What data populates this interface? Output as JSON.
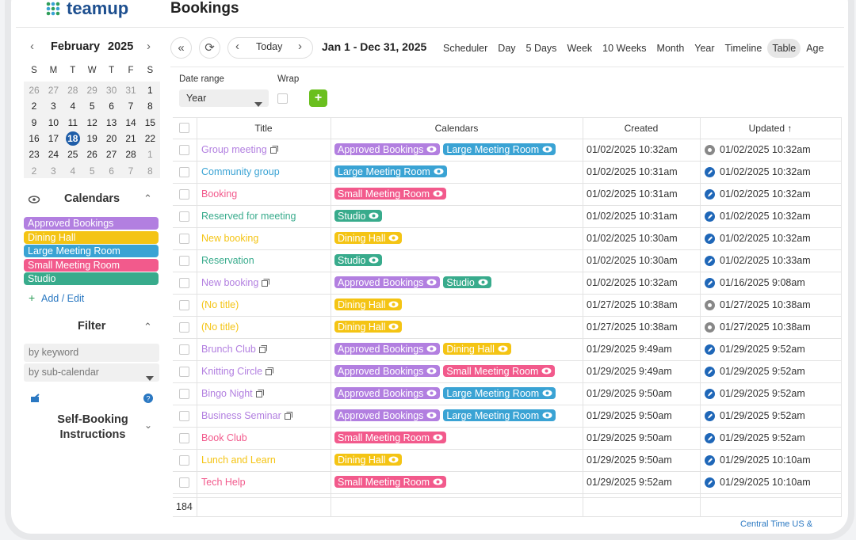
{
  "app": {
    "logo": "teamup",
    "page_title": "Bookings"
  },
  "mini_calendar": {
    "month": "February",
    "year": "2025",
    "today": 18,
    "weekdays": [
      "S",
      "M",
      "T",
      "W",
      "T",
      "F",
      "S"
    ],
    "weeks": [
      [
        26,
        27,
        28,
        29,
        30,
        31,
        1
      ],
      [
        2,
        3,
        4,
        5,
        6,
        7,
        8
      ],
      [
        9,
        10,
        11,
        12,
        13,
        14,
        15
      ],
      [
        16,
        17,
        18,
        19,
        20,
        21,
        22
      ],
      [
        23,
        24,
        25,
        26,
        27,
        28,
        1
      ],
      [
        2,
        3,
        4,
        5,
        6,
        7,
        8
      ]
    ]
  },
  "calendars": {
    "title": "Calendars",
    "add_edit": "Add / Edit",
    "items": [
      {
        "name": "Approved Bookings",
        "color": "#b27fe0"
      },
      {
        "name": "Dining Hall",
        "color": "#f4c414"
      },
      {
        "name": "Large Meeting Room",
        "color": "#3aa3d4"
      },
      {
        "name": "Small Meeting Room",
        "color": "#f25a8c"
      },
      {
        "name": "Studio",
        "color": "#38ab8c"
      }
    ]
  },
  "filter": {
    "title": "Filter",
    "keyword": "by keyword",
    "sub_calendar": "by sub-calendar"
  },
  "self_booking": {
    "title": "Self-Booking Instructions"
  },
  "toolbar": {
    "today": "Today",
    "range": "Jan 1 - Dec 31, 2025",
    "active_view": "Table",
    "views": [
      "Scheduler",
      "Day",
      "5 Days",
      "Week",
      "10 Weeks",
      "Month",
      "Year",
      "Timeline",
      "Table",
      "Age"
    ]
  },
  "options": {
    "date_range_label": "Date range",
    "date_range_value": "Year",
    "wrap_label": "Wrap"
  },
  "table": {
    "columns": [
      "Title",
      "Calendars",
      "Created",
      "Updated ↑"
    ],
    "count": "184",
    "rows": [
      {
        "title": "Group meeting",
        "linked": true,
        "calendars": [
          "Approved Bookings",
          "Large Meeting Room"
        ],
        "created": "01/02/2025 10:32am",
        "updated": "01/02/2025 10:32am",
        "icon": "gray"
      },
      {
        "title": "Community group",
        "linked": false,
        "calendars": [
          "Large Meeting Room"
        ],
        "created": "01/02/2025 10:31am",
        "updated": "01/02/2025 10:32am",
        "icon": "blue"
      },
      {
        "title": "Booking",
        "linked": false,
        "calendars": [
          "Small Meeting Room"
        ],
        "created": "01/02/2025 10:31am",
        "updated": "01/02/2025 10:32am",
        "icon": "blue"
      },
      {
        "title": "Reserved for meeting",
        "linked": false,
        "calendars": [
          "Studio"
        ],
        "created": "01/02/2025 10:31am",
        "updated": "01/02/2025 10:32am",
        "icon": "blue"
      },
      {
        "title": "New booking",
        "linked": false,
        "calendars": [
          "Dining Hall"
        ],
        "created": "01/02/2025 10:30am",
        "updated": "01/02/2025 10:32am",
        "icon": "blue"
      },
      {
        "title": "Reservation",
        "linked": false,
        "calendars": [
          "Studio"
        ],
        "created": "01/02/2025 10:30am",
        "updated": "01/02/2025 10:33am",
        "icon": "blue"
      },
      {
        "title": "New booking",
        "linked": true,
        "calendars": [
          "Approved Bookings",
          "Studio"
        ],
        "created": "01/02/2025 10:32am",
        "updated": "01/16/2025 9:08am",
        "icon": "blue"
      },
      {
        "title": "(No title)",
        "linked": false,
        "calendars": [
          "Dining Hall"
        ],
        "created": "01/27/2025 10:38am",
        "updated": "01/27/2025 10:38am",
        "icon": "gray"
      },
      {
        "title": "(No title)",
        "linked": false,
        "calendars": [
          "Dining Hall"
        ],
        "created": "01/27/2025 10:38am",
        "updated": "01/27/2025 10:38am",
        "icon": "gray"
      },
      {
        "title": "Brunch Club",
        "linked": true,
        "calendars": [
          "Approved Bookings",
          "Dining Hall"
        ],
        "created": "01/29/2025 9:49am",
        "updated": "01/29/2025 9:52am",
        "icon": "blue"
      },
      {
        "title": "Knitting Circle",
        "linked": true,
        "calendars": [
          "Approved Bookings",
          "Small Meeting Room"
        ],
        "created": "01/29/2025 9:49am",
        "updated": "01/29/2025 9:52am",
        "icon": "blue"
      },
      {
        "title": "Bingo Night",
        "linked": true,
        "calendars": [
          "Approved Bookings",
          "Large Meeting Room"
        ],
        "created": "01/29/2025 9:50am",
        "updated": "01/29/2025 9:52am",
        "icon": "blue"
      },
      {
        "title": "Business Seminar",
        "linked": true,
        "calendars": [
          "Approved Bookings",
          "Large Meeting Room"
        ],
        "created": "01/29/2025 9:50am",
        "updated": "01/29/2025 9:52am",
        "icon": "blue"
      },
      {
        "title": "Book Club",
        "linked": false,
        "calendars": [
          "Small Meeting Room"
        ],
        "created": "01/29/2025 9:50am",
        "updated": "01/29/2025 9:52am",
        "icon": "blue"
      },
      {
        "title": "Lunch and Learn",
        "linked": false,
        "calendars": [
          "Dining Hall"
        ],
        "created": "01/29/2025 9:50am",
        "updated": "01/29/2025 10:10am",
        "icon": "blue"
      },
      {
        "title": "Tech Help",
        "linked": false,
        "calendars": [
          "Small Meeting Room"
        ],
        "created": "01/29/2025 9:52am",
        "updated": "01/29/2025 10:10am",
        "icon": "blue"
      }
    ]
  },
  "timezone": "Central Time US &"
}
